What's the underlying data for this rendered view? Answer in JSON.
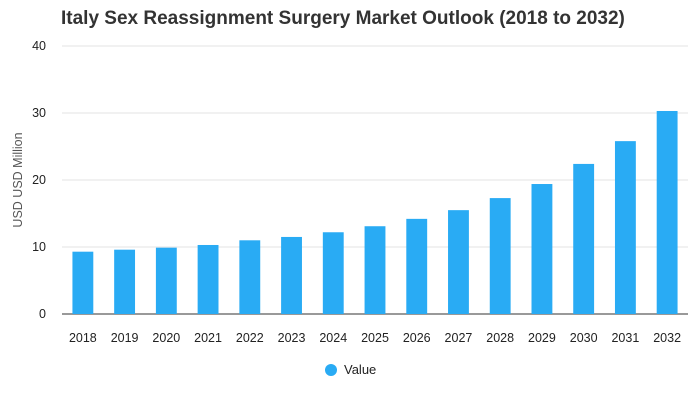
{
  "chart_data": {
    "type": "bar",
    "title": "Italy Sex Reassignment Surgery Market Outlook (2018 to 2032)",
    "xlabel": "",
    "ylabel": "USD USD Million",
    "ylim": [
      0,
      40
    ],
    "yticks": [
      0,
      10,
      20,
      30,
      40
    ],
    "grid": true,
    "legend_position": "bottom-center",
    "categories": [
      "2018",
      "2019",
      "2020",
      "2021",
      "2022",
      "2023",
      "2024",
      "2025",
      "2026",
      "2027",
      "2028",
      "2029",
      "2030",
      "2031",
      "2032"
    ],
    "series": [
      {
        "name": "Value",
        "color": "#29abf4",
        "values": [
          9.3,
          9.6,
          9.9,
          10.3,
          11.0,
          11.5,
          12.2,
          13.1,
          14.2,
          15.5,
          17.3,
          19.4,
          22.4,
          25.8,
          30.3
        ]
      }
    ]
  }
}
